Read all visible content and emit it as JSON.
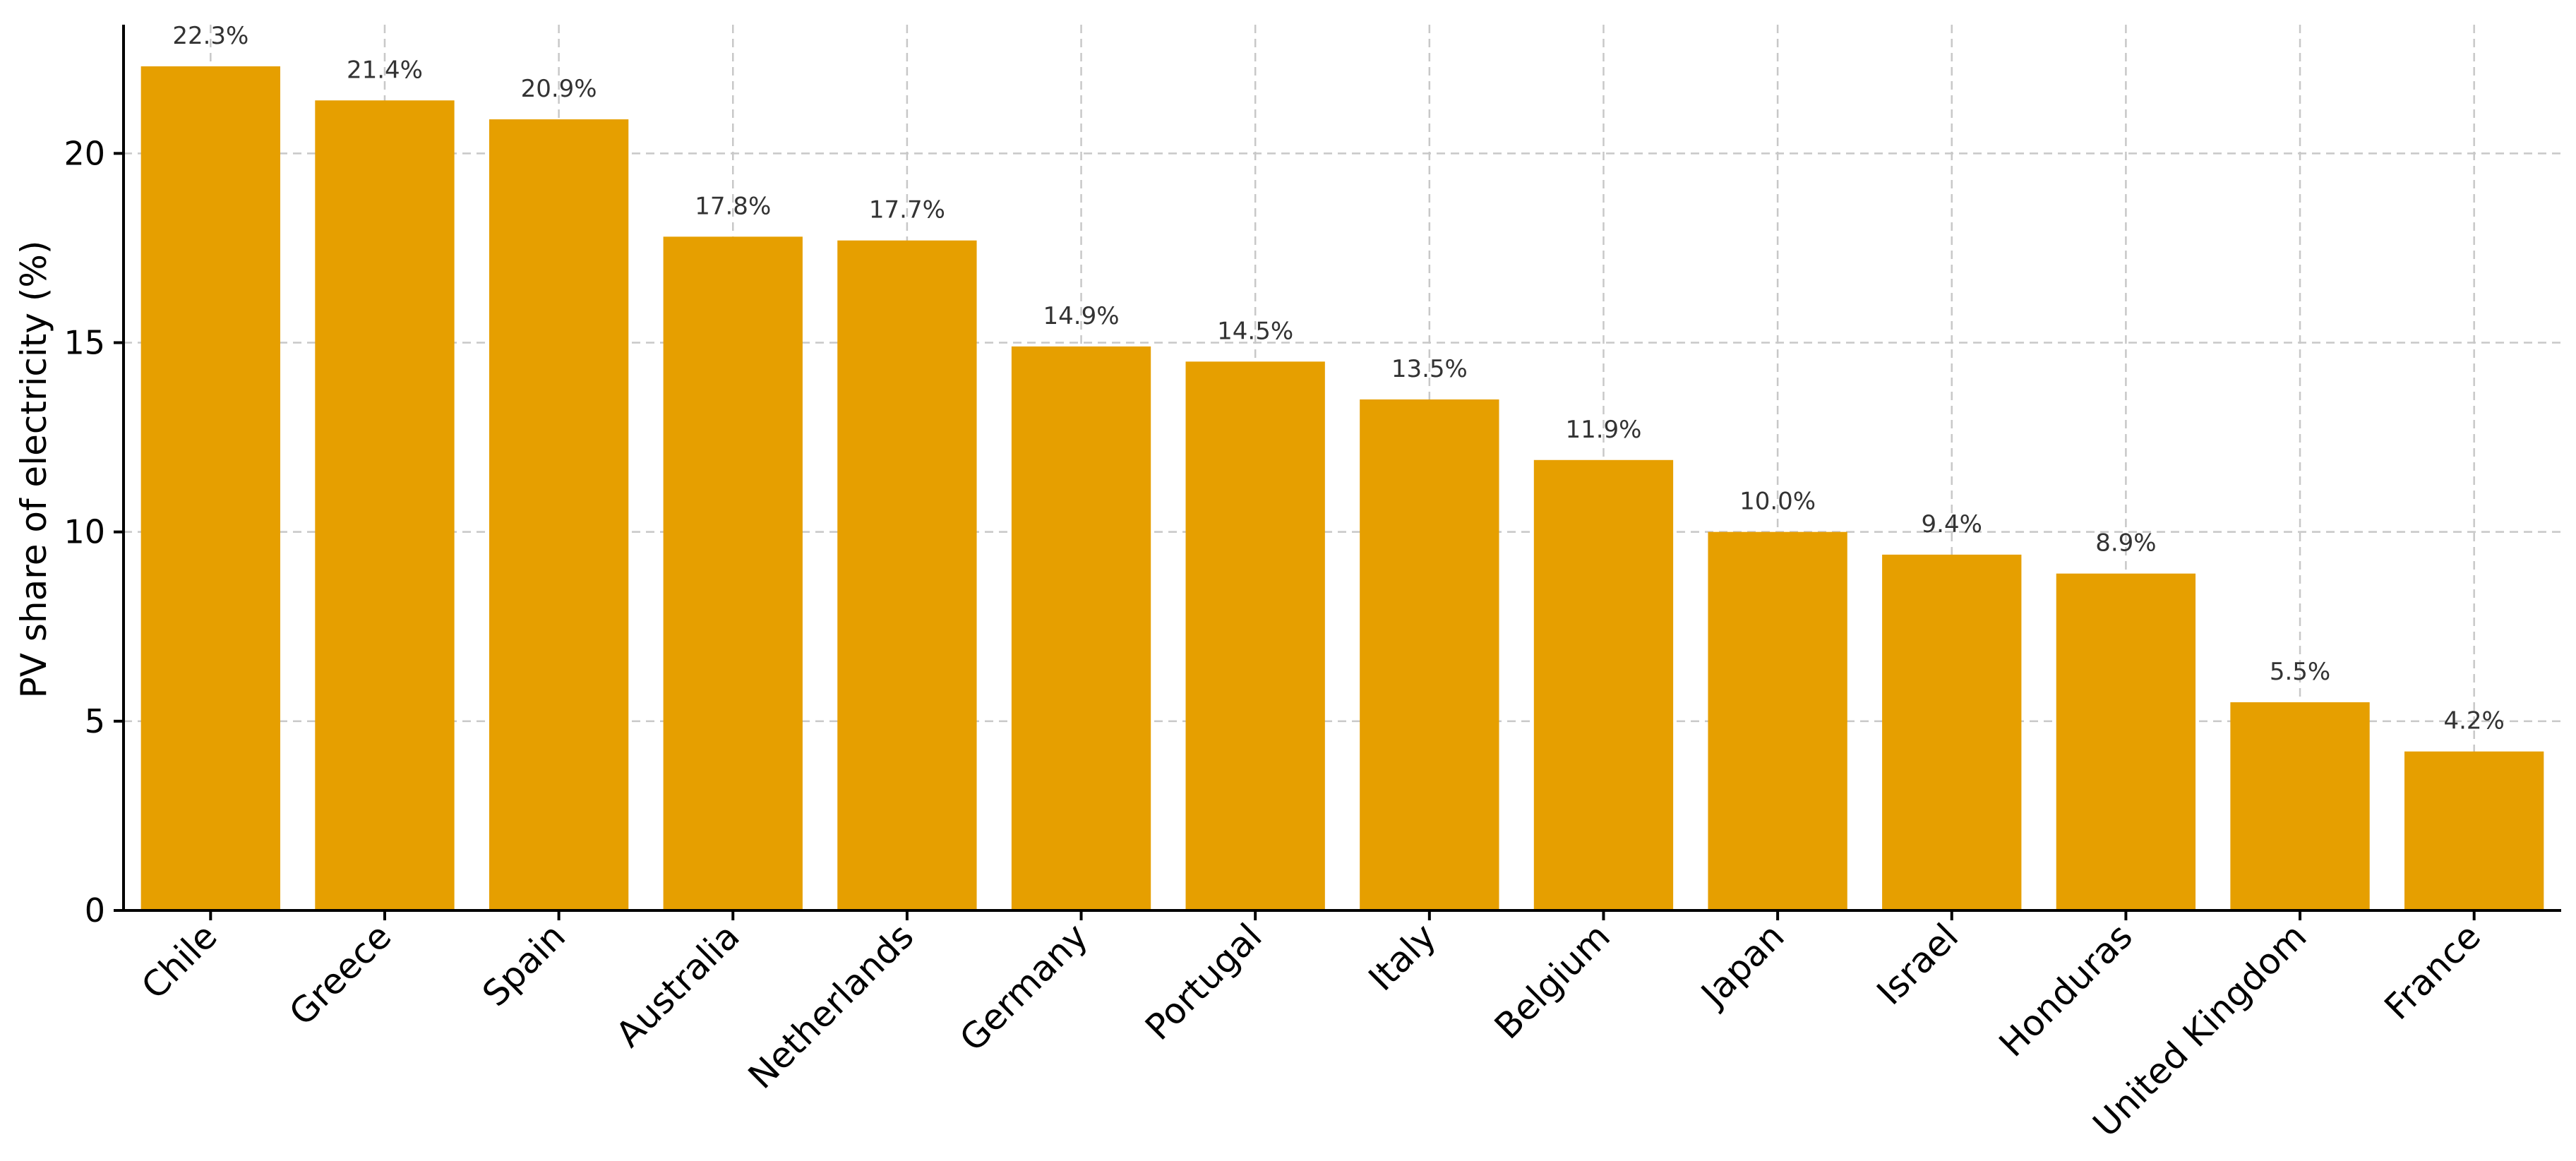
{
  "chart_data": {
    "type": "bar",
    "title": "",
    "xlabel": "",
    "ylabel": "PV share of electricity (%)",
    "categories": [
      "Chile",
      "Greece",
      "Spain",
      "Australia",
      "Netherlands",
      "Germany",
      "Portugal",
      "Italy",
      "Belgium",
      "Japan",
      "Israel",
      "Honduras",
      "United Kingdom",
      "France"
    ],
    "values": [
      22.3,
      21.4,
      20.9,
      17.8,
      17.7,
      14.9,
      14.5,
      13.5,
      11.9,
      10.0,
      9.4,
      8.9,
      5.5,
      4.2
    ],
    "data_labels": [
      "22.3%",
      "21.4%",
      "20.9%",
      "17.8%",
      "17.7%",
      "14.9%",
      "14.5%",
      "13.5%",
      "11.9%",
      "10.0%",
      "9.4%",
      "8.9%",
      "5.5%",
      "4.2%"
    ],
    "yticks": [
      0,
      5,
      10,
      15,
      20
    ],
    "ylim": [
      0,
      23.4
    ],
    "grid": true,
    "bar_color": "#E69F00",
    "legend": "none"
  }
}
